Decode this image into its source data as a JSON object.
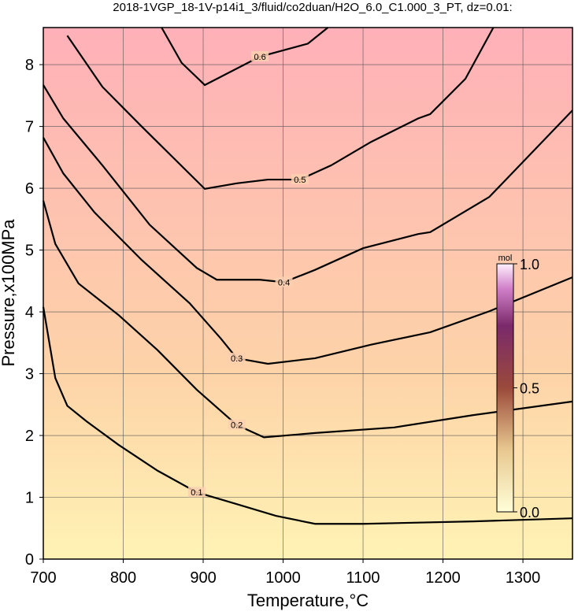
{
  "chart_data": {
    "type": "contour",
    "title": "2018-1VGP_18-1V-p14i1_3/fluid/co2duan/H2O_6.0_C1.000_3_PT, dz=0.01:",
    "x_label": "Temperature,°C",
    "y_label": "Pressure,x100MPa",
    "xlim": [
      700,
      1362
    ],
    "ylim": [
      0,
      8.6
    ],
    "xticks": [
      700,
      800,
      900,
      1000,
      1100,
      1200,
      1300
    ],
    "yticks": [
      0,
      1,
      2,
      3,
      4,
      5,
      6,
      7,
      8
    ],
    "grid": true,
    "contours": [
      {
        "level": 0.1,
        "x": [
          700,
          715,
          730,
          754,
          794,
          843,
          892,
          942,
          991,
          1040,
          1100,
          1238,
          1362
        ],
        "y": [
          4.08,
          2.93,
          2.48,
          2.23,
          1.85,
          1.43,
          1.08,
          0.89,
          0.7,
          0.57,
          0.57,
          0.61,
          0.66
        ]
      },
      {
        "level": 0.2,
        "x": [
          700,
          715,
          744,
          794,
          843,
          892,
          942,
          976,
          1040,
          1139,
          1238,
          1362
        ],
        "y": [
          5.8,
          5.1,
          4.46,
          3.95,
          3.38,
          2.74,
          2.17,
          1.97,
          2.04,
          2.13,
          2.33,
          2.55
        ]
      },
      {
        "level": 0.3,
        "x": [
          700,
          725,
          764,
          823,
          883,
          922,
          942,
          981,
          1040,
          1110,
          1184,
          1258,
          1362
        ],
        "y": [
          6.82,
          6.24,
          5.61,
          4.84,
          4.14,
          3.57,
          3.25,
          3.16,
          3.25,
          3.47,
          3.67,
          4.01,
          4.56
        ]
      },
      {
        "level": 0.4,
        "x": [
          700,
          725,
          774,
          833,
          892,
          917,
          971,
          1001,
          1040,
          1100,
          1169,
          1184,
          1258,
          1362
        ],
        "y": [
          7.67,
          7.13,
          6.37,
          5.41,
          4.71,
          4.52,
          4.52,
          4.48,
          4.68,
          5.03,
          5.26,
          5.29,
          5.86,
          7.26
        ]
      },
      {
        "level": 0.5,
        "x": [
          730,
          774,
          823,
          902,
          942,
          981,
          1021,
          1060,
          1110,
          1169,
          1184,
          1228,
          1263
        ],
        "y": [
          8.47,
          7.64,
          7.0,
          5.99,
          6.08,
          6.14,
          6.14,
          6.37,
          6.75,
          7.13,
          7.2,
          7.77,
          8.6
        ]
      },
      {
        "level": 0.6,
        "x": [
          848,
          873,
          902,
          971,
          1031,
          1056
        ],
        "y": [
          8.6,
          8.03,
          7.67,
          8.13,
          8.34,
          8.6
        ]
      }
    ],
    "colorbar": {
      "label": "mol",
      "lim": [
        0,
        1
      ],
      "ticks": [
        {
          "value": 0,
          "label": "0.0"
        },
        {
          "value": 0.5,
          "label": "0.5"
        },
        {
          "value": 1,
          "label": "1.0"
        }
      ]
    }
  }
}
